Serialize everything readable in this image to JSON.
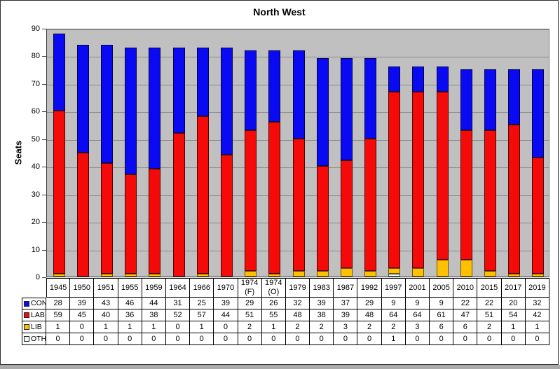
{
  "chart_data": {
    "type": "bar",
    "stacked": true,
    "title": "North West",
    "ylabel": "Seats",
    "xlabel": "",
    "ylim": [
      0,
      90
    ],
    "yticks": [
      0,
      10,
      20,
      30,
      40,
      50,
      60,
      70,
      80,
      90
    ],
    "grid": true,
    "plot_bg_color": "#c0c0c0",
    "gridline_color": "#8a8a8a",
    "legend_position": "table-left",
    "categories": [
      "1945",
      "1950",
      "1951",
      "1955",
      "1959",
      "1964",
      "1966",
      "1970",
      "1974 (F)",
      "1974 (O)",
      "1979",
      "1983",
      "1987",
      "1992",
      "1997",
      "2001",
      "2005",
      "2010",
      "2015",
      "2017",
      "2019"
    ],
    "series": [
      {
        "name": "CON",
        "color": "#0a0af2",
        "border_color": "#00004f",
        "values": [
          28,
          39,
          43,
          46,
          44,
          31,
          25,
          39,
          29,
          26,
          32,
          39,
          37,
          29,
          9,
          9,
          9,
          22,
          22,
          20,
          32
        ]
      },
      {
        "name": "LAB",
        "color": "#f50a0a",
        "border_color": "#4f0000",
        "values": [
          59,
          45,
          40,
          36,
          38,
          52,
          57,
          44,
          51,
          55,
          48,
          38,
          39,
          48,
          64,
          64,
          61,
          47,
          51,
          54,
          42
        ]
      },
      {
        "name": "LIB",
        "color": "#ffc000",
        "border_color": "#6e5400",
        "values": [
          1,
          0,
          1,
          1,
          1,
          0,
          1,
          0,
          2,
          1,
          2,
          2,
          3,
          2,
          2,
          3,
          6,
          6,
          2,
          1,
          1
        ]
      },
      {
        "name": "OTH",
        "color": "#eef8f2",
        "border_color": "#3c5a52",
        "values": [
          0,
          0,
          0,
          0,
          0,
          0,
          0,
          0,
          0,
          0,
          0,
          0,
          0,
          0,
          1,
          0,
          0,
          0,
          0,
          0,
          0
        ]
      }
    ],
    "stack_order_bottom_to_top": [
      "OTH",
      "LIB",
      "LAB",
      "CON"
    ]
  }
}
